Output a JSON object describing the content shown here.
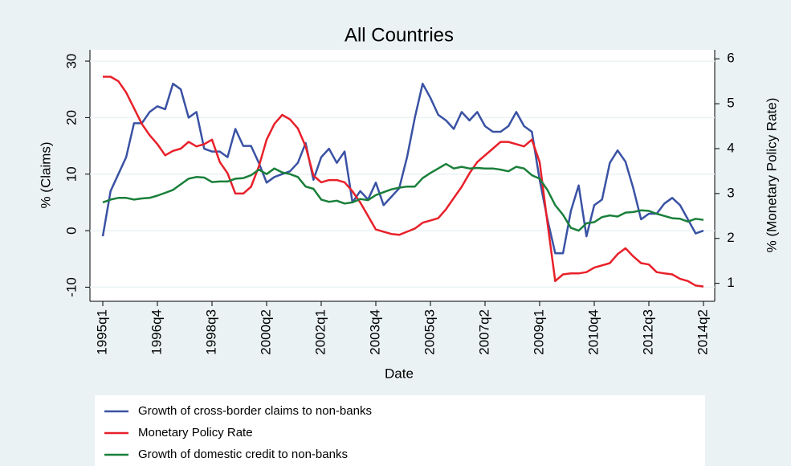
{
  "chart_data": {
    "type": "line",
    "title": "All Countries",
    "x_label": "Date",
    "y_label": "% (Claims)",
    "y2_label": "% (Monetary Policy Rate)",
    "categories": [
      "1995q1",
      null,
      null,
      null,
      null,
      null,
      null,
      "1996q4",
      null,
      null,
      null,
      null,
      null,
      null,
      "1998q3",
      null,
      null,
      null,
      null,
      null,
      null,
      "2000q2",
      null,
      null,
      null,
      null,
      null,
      null,
      "2002q1",
      null,
      null,
      null,
      null,
      null,
      null,
      "2003q4",
      null,
      null,
      null,
      null,
      null,
      null,
      "2005q3",
      null,
      null,
      null,
      null,
      null,
      null,
      "2007q2",
      null,
      null,
      null,
      null,
      null,
      null,
      "2009q1",
      null,
      null,
      null,
      null,
      null,
      null,
      "2010q4",
      null,
      null,
      null,
      null,
      null,
      null,
      "2012q3",
      null,
      null,
      null,
      null,
      null,
      null,
      "2014q2"
    ],
    "series": [
      {
        "name": "Growth of cross-border claims to non-banks",
        "color": "#3a52a4",
        "axis": "y",
        "values": [
          -1,
          7,
          10,
          13,
          19,
          19,
          21,
          22,
          21.5,
          26,
          25,
          20,
          21,
          14.5,
          14,
          14,
          13,
          18,
          15,
          15,
          12,
          8.5,
          9.5,
          10,
          10.5,
          12,
          15.5,
          9,
          13,
          14.5,
          12,
          14,
          5,
          7,
          5.5,
          8.5,
          4.5,
          6,
          7.5,
          13,
          20,
          26,
          23.5,
          20.5,
          19.5,
          18,
          21,
          19.5,
          21,
          18.5,
          17.5,
          17.5,
          18.5,
          21,
          18.5,
          17.5,
          9,
          2,
          -4,
          -4,
          3.5,
          8,
          -1,
          4.5,
          5.5,
          12,
          14.2,
          12.2,
          7.5,
          2,
          3,
          3,
          4.8,
          5.8,
          4.5,
          2,
          -0.5,
          0
        ]
      },
      {
        "name": "Monetary Policy Rate",
        "color": "#e8202a",
        "axis": "y2",
        "values": [
          5.6,
          5.6,
          5.5,
          5.25,
          4.9,
          4.55,
          4.3,
          4.1,
          3.85,
          3.95,
          4.0,
          4.15,
          4.05,
          4.1,
          4.2,
          3.7,
          3.45,
          3.0,
          3.0,
          3.15,
          3.6,
          4.2,
          4.55,
          4.75,
          4.65,
          4.45,
          4.05,
          3.4,
          3.25,
          3.3,
          3.3,
          3.25,
          3.05,
          2.8,
          2.5,
          2.2,
          2.15,
          2.1,
          2.08,
          2.15,
          2.22,
          2.35,
          2.4,
          2.45,
          2.65,
          2.9,
          3.15,
          3.45,
          3.7,
          3.85,
          4.0,
          4.15,
          4.15,
          4.1,
          4.05,
          4.2,
          3.7,
          2.35,
          1.05,
          1.2,
          1.22,
          1.22,
          1.25,
          1.35,
          1.4,
          1.45,
          1.65,
          1.78,
          1.6,
          1.45,
          1.42,
          1.25,
          1.22,
          1.2,
          1.1,
          1.05,
          0.95,
          0.93
        ]
      },
      {
        "name": "Growth of domestic credit to non-banks",
        "color": "#1a7f3a",
        "axis": "y",
        "values": [
          5,
          5.5,
          5.8,
          5.8,
          5.5,
          5.7,
          5.8,
          6.2,
          6.7,
          7.2,
          8.2,
          9.2,
          9.5,
          9.4,
          8.6,
          8.7,
          8.7,
          9.2,
          9.3,
          9.8,
          10.8,
          10,
          11,
          10.3,
          10,
          9.5,
          7.8,
          7.4,
          5.5,
          5.1,
          5.3,
          4.8,
          5.0,
          5.6,
          5.4,
          6.3,
          6.8,
          7.3,
          7.6,
          7.8,
          7.8,
          9.3,
          10.2,
          11,
          11.8,
          11,
          11.3,
          11,
          11.1,
          11,
          11,
          10.8,
          10.5,
          11.3,
          11,
          9.8,
          9.2,
          7.2,
          4.5,
          2.8,
          0.5,
          0,
          1.3,
          1.5,
          2.4,
          2.7,
          2.5,
          3.2,
          3.3,
          3.6,
          3.5,
          3,
          2.6,
          2.2,
          2.1,
          1.6,
          2.1,
          1.9
        ]
      }
    ],
    "ylim": [
      -12.5,
      32
    ],
    "yticks": [
      -10,
      0,
      10,
      20,
      30
    ],
    "y2lim": [
      0.6,
      6.2
    ],
    "y2ticks": [
      1,
      2,
      3,
      4,
      5,
      6
    ],
    "grid": true,
    "legend": "bottom"
  }
}
